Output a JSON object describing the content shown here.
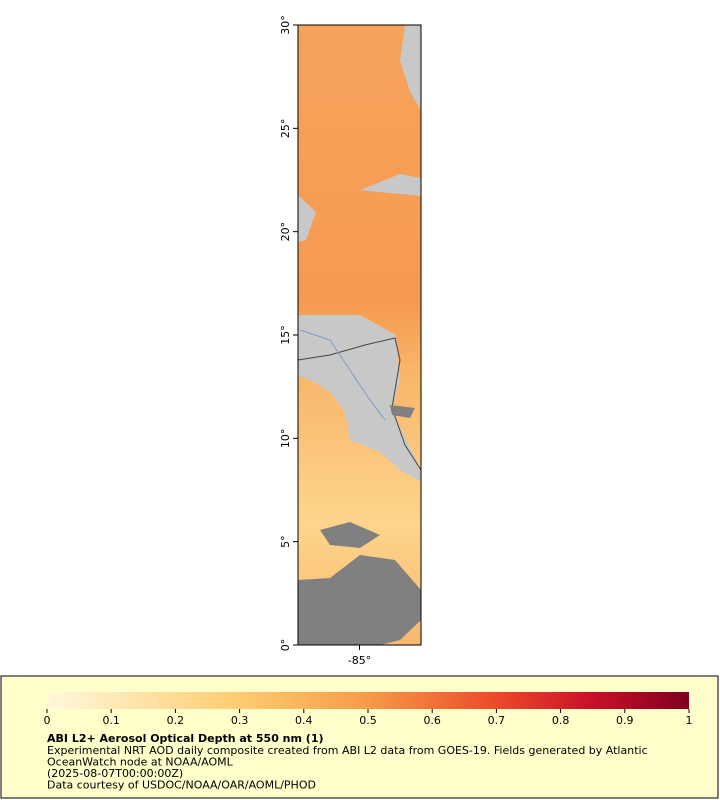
{
  "map": {
    "lat_range": [
      0,
      30
    ],
    "lon_range": [
      -88,
      -82
    ],
    "lat_ticks": [
      {
        "value": 0,
        "label": "0°"
      },
      {
        "value": 5,
        "label": "5°"
      },
      {
        "value": 10,
        "label": "10°"
      },
      {
        "value": 15,
        "label": "15°"
      },
      {
        "value": 20,
        "label": "20°"
      },
      {
        "value": 25,
        "label": "25°"
      },
      {
        "value": 30,
        "label": "30°"
      }
    ],
    "lon_ticks": [
      {
        "value": -85,
        "label": "-85°"
      }
    ]
  },
  "colorbar": {
    "range": [
      0,
      1
    ],
    "ticks": [
      0,
      0.1,
      0.2,
      0.3,
      0.4,
      0.5,
      0.6,
      0.7,
      0.8,
      0.9,
      1
    ]
  },
  "legend": {
    "title": "ABI L2+ Aerosol Optical Depth at 550 nm (1)",
    "lines": [
      "Experimental NRT AOD daily composite created from ABI L2 data from GOES-19. Fields generated by Atlantic",
      "OceanWatch node at NOAA/AOML",
      "(2025-08-07T00:00:00Z)",
      "Data courtesy of USDOC/NOAA/OAR/AOML/PHOD"
    ]
  }
}
